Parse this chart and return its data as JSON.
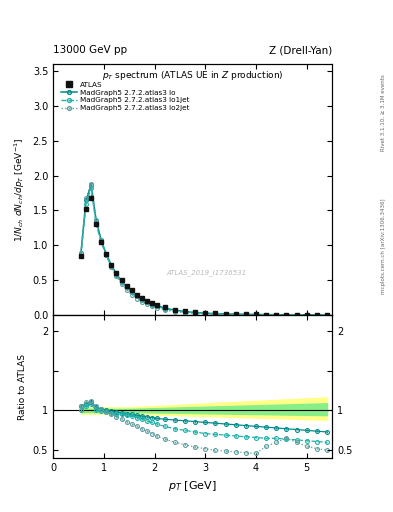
{
  "title_left": "13000 GeV pp",
  "title_right": "Z (Drell-Yan)",
  "plot_title": "p_{T} spectrum (ATLAS UE in Z production)",
  "xlabel": "p_{T} [GeV]",
  "ylabel_main": "1/N_{ch} dN_{ch}/dp_{T} [GeV^{-1}]",
  "ylabel_ratio": "Ratio to ATLAS",
  "right_label_top": "Rivet 3.1.10, ≥ 3.1M events",
  "right_label_bottom": "mcplots.cern.ch [arXiv:1306.3436]",
  "watermark": "ATLAS_2019_I1736531",
  "main_ylim": [
    0,
    3.6
  ],
  "ratio_ylim": [
    0.4,
    2.2
  ],
  "teal": "#008B8B",
  "teal2": "#20B2AA",
  "teal3": "#5F9EA0",
  "yellow": "#ffff88",
  "green": "#88ee88",
  "atlas_pt": [
    0.55,
    0.65,
    0.75,
    0.85,
    0.95,
    1.05,
    1.15,
    1.25,
    1.35,
    1.45,
    1.55,
    1.65,
    1.75,
    1.85,
    1.95,
    2.05,
    2.2,
    2.4,
    2.6,
    2.8,
    3.0,
    3.2,
    3.4,
    3.6,
    3.8,
    4.0,
    4.2,
    4.4,
    4.6,
    4.8,
    5.0,
    5.2,
    5.4
  ],
  "atlas_y": [
    0.85,
    1.52,
    1.68,
    1.3,
    1.05,
    0.87,
    0.72,
    0.6,
    0.5,
    0.42,
    0.35,
    0.29,
    0.245,
    0.205,
    0.173,
    0.147,
    0.11,
    0.077,
    0.055,
    0.04,
    0.029,
    0.022,
    0.016,
    0.012,
    0.009,
    0.007,
    0.005,
    0.004,
    0.003,
    0.002,
    0.0015,
    0.001,
    0.0008
  ],
  "lo_ratio": [
    1.05,
    1.08,
    1.11,
    1.04,
    1.02,
    1.0,
    0.99,
    0.98,
    0.97,
    0.96,
    0.95,
    0.94,
    0.93,
    0.92,
    0.91,
    0.9,
    0.89,
    0.88,
    0.87,
    0.86,
    0.85,
    0.84,
    0.83,
    0.82,
    0.81,
    0.8,
    0.79,
    0.78,
    0.77,
    0.76,
    0.75,
    0.74,
    0.73
  ],
  "lo1jet_ratio": [
    1.0,
    1.05,
    1.08,
    1.0,
    0.99,
    0.98,
    0.97,
    0.96,
    0.95,
    0.94,
    0.93,
    0.91,
    0.89,
    0.87,
    0.85,
    0.83,
    0.8,
    0.77,
    0.75,
    0.73,
    0.71,
    0.7,
    0.69,
    0.68,
    0.67,
    0.66,
    0.65,
    0.65,
    0.64,
    0.63,
    0.62,
    0.61,
    0.6
  ],
  "lo2jet_ratio": [
    1.05,
    1.1,
    1.12,
    1.05,
    1.02,
    0.98,
    0.95,
    0.92,
    0.89,
    0.86,
    0.83,
    0.8,
    0.77,
    0.74,
    0.71,
    0.68,
    0.64,
    0.6,
    0.57,
    0.54,
    0.52,
    0.5,
    0.49,
    0.48,
    0.47,
    0.46,
    0.55,
    0.6,
    0.65,
    0.6,
    0.55,
    0.52,
    0.5
  ]
}
